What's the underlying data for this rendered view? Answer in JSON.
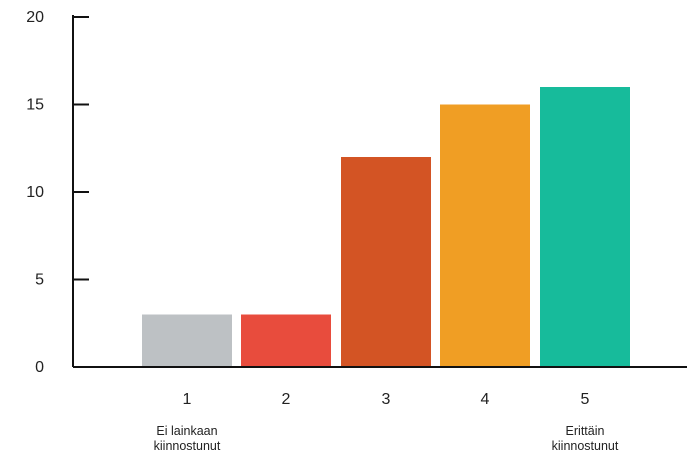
{
  "chart_data": {
    "type": "bar",
    "categories": [
      "1",
      "2",
      "3",
      "4",
      "5"
    ],
    "values": [
      3,
      3,
      12,
      15,
      16
    ],
    "bar_colors": [
      "#bdc1c4",
      "#e84c3d",
      "#d35424",
      "#f09e24",
      "#17bb9b"
    ],
    "ylim": [
      0,
      20
    ],
    "yticks": [
      "0",
      "5",
      "10",
      "15",
      "20"
    ],
    "grid": false,
    "category_notes": [
      {
        "category": "1",
        "lines": [
          "Ei lainkaan",
          "kiinnostunut"
        ]
      },
      {
        "category": "5",
        "lines": [
          "Erittäin",
          "kiinnostunut"
        ]
      }
    ],
    "title": "",
    "xlabel": "",
    "ylabel": ""
  }
}
